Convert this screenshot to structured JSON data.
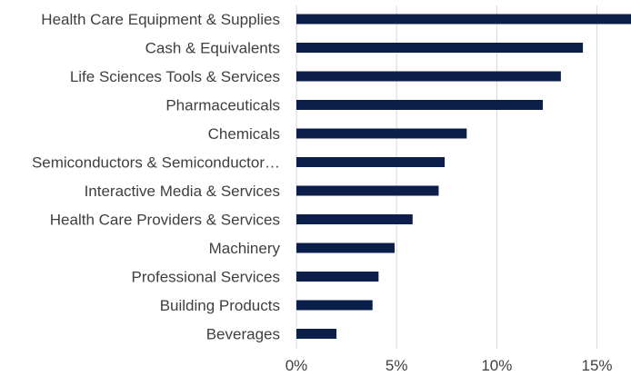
{
  "chart_data": {
    "type": "bar",
    "orientation": "horizontal",
    "categories": [
      "Health Care Equipment & Supplies",
      "Cash & Equivalents",
      "Life Sciences Tools & Services",
      "Pharmaceuticals",
      "Chemicals",
      "Semiconductors & Semiconductor…",
      "Interactive Media & Services",
      "Health Care Providers & Services",
      "Machinery",
      "Professional Services",
      "Building Products",
      "Beverages"
    ],
    "values": [
      16.7,
      14.3,
      13.2,
      12.3,
      8.5,
      7.4,
      7.1,
      5.8,
      4.9,
      4.1,
      3.8,
      2.0
    ],
    "x_ticks": [
      "0%",
      "5%",
      "10%",
      "15%"
    ],
    "x_tick_values": [
      0,
      5,
      10,
      15
    ],
    "xlim": [
      0,
      16.7
    ],
    "grid": true,
    "bar_color": "#0c1f4a",
    "title": "",
    "xlabel": "",
    "ylabel": ""
  }
}
